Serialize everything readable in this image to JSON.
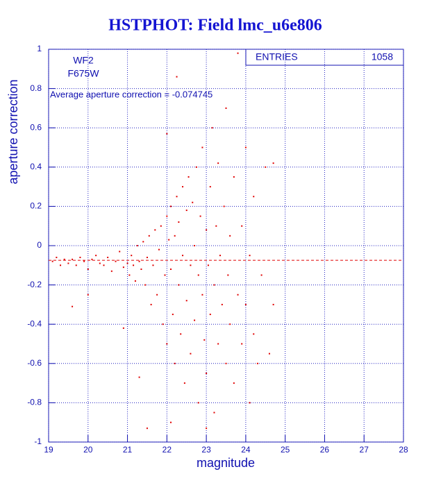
{
  "chart_data": {
    "type": "scatter",
    "title": "HSTPHOT: Field lmc_u6e806",
    "xlabel": "magnitude",
    "ylabel": "aperture correction",
    "annotations": [
      "WF2",
      "F675W",
      "Average aperture correction = -0.074745"
    ],
    "average": -0.074745,
    "stats": {
      "label": "ENTRIES",
      "value": "1058"
    },
    "color": "#e00000",
    "grid": true,
    "xlim": [
      19,
      28
    ],
    "xticks": [
      19,
      20,
      21,
      22,
      23,
      24,
      25,
      26,
      27,
      28
    ],
    "ylim": [
      -1,
      1
    ],
    "yticks": [
      -1,
      -0.8,
      -0.6,
      -0.4,
      -0.2,
      0,
      0.2,
      0.4,
      0.6,
      0.8,
      1
    ],
    "x": [
      19.1,
      19.2,
      19.3,
      19.4,
      19.5,
      19.6,
      19.7,
      19.8,
      19.9,
      20.0,
      20.1,
      20.2,
      20.3,
      20.4,
      20.5,
      20.6,
      20.7,
      20.8,
      20.9,
      21.0,
      21.05,
      21.1,
      21.15,
      21.2,
      21.25,
      21.3,
      21.35,
      21.4,
      21.45,
      21.5,
      21.55,
      21.6,
      21.65,
      21.7,
      21.75,
      21.8,
      21.85,
      21.9,
      21.95,
      22.0,
      22.0,
      22.05,
      22.1,
      22.1,
      22.15,
      22.2,
      22.2,
      22.25,
      22.3,
      22.3,
      22.35,
      22.4,
      22.4,
      22.45,
      22.5,
      22.5,
      22.55,
      22.6,
      22.6,
      22.65,
      22.7,
      22.7,
      22.75,
      22.8,
      22.8,
      22.85,
      22.9,
      22.9,
      22.95,
      23.0,
      23.0,
      23.05,
      23.1,
      23.1,
      23.15,
      23.2,
      23.2,
      23.25,
      23.3,
      23.3,
      23.35,
      23.4,
      23.45,
      23.5,
      23.5,
      23.55,
      23.6,
      23.6,
      23.7,
      23.7,
      23.8,
      23.8,
      23.9,
      23.9,
      24.0,
      24.0,
      24.1,
      24.1,
      24.2,
      24.2,
      24.3,
      24.4,
      24.5,
      24.6,
      24.7,
      22.25,
      22.0,
      21.3,
      20.0,
      19.6,
      21.5,
      22.1,
      23.0,
      20.9,
      24.7
    ],
    "values": [
      -0.08,
      -0.06,
      -0.1,
      -0.07,
      -0.09,
      -0.07,
      -0.1,
      -0.06,
      -0.08,
      -0.12,
      -0.07,
      -0.05,
      -0.09,
      -0.1,
      -0.06,
      -0.13,
      -0.08,
      -0.03,
      -0.11,
      -0.09,
      -0.15,
      -0.05,
      -0.1,
      -0.18,
      0.0,
      -0.08,
      -0.12,
      0.02,
      -0.2,
      -0.06,
      0.05,
      -0.3,
      -0.1,
      0.08,
      -0.25,
      -0.02,
      0.1,
      -0.4,
      -0.15,
      0.15,
      -0.5,
      0.03,
      -0.12,
      0.2,
      -0.35,
      0.05,
      -0.6,
      0.25,
      -0.2,
      0.12,
      -0.45,
      0.3,
      -0.05,
      -0.7,
      0.18,
      -0.28,
      0.35,
      -0.1,
      -0.55,
      0.22,
      0.0,
      -0.38,
      0.4,
      -0.15,
      -0.8,
      0.15,
      -0.25,
      0.5,
      -0.48,
      0.08,
      -0.65,
      -0.1,
      0.3,
      -0.35,
      0.6,
      -0.2,
      -0.85,
      0.1,
      -0.5,
      0.42,
      -0.05,
      -0.3,
      0.2,
      -0.6,
      0.7,
      -0.15,
      0.05,
      -0.4,
      0.35,
      -0.7,
      -0.25,
      0.98,
      0.1,
      -0.5,
      -0.3,
      0.5,
      -0.05,
      -0.8,
      0.25,
      -0.45,
      -0.6,
      -0.15,
      0.4,
      -0.55,
      -0.3,
      0.86,
      0.57,
      -0.67,
      -0.25,
      -0.31,
      -0.93,
      -0.9,
      -0.93,
      -0.42,
      0.42
    ]
  }
}
